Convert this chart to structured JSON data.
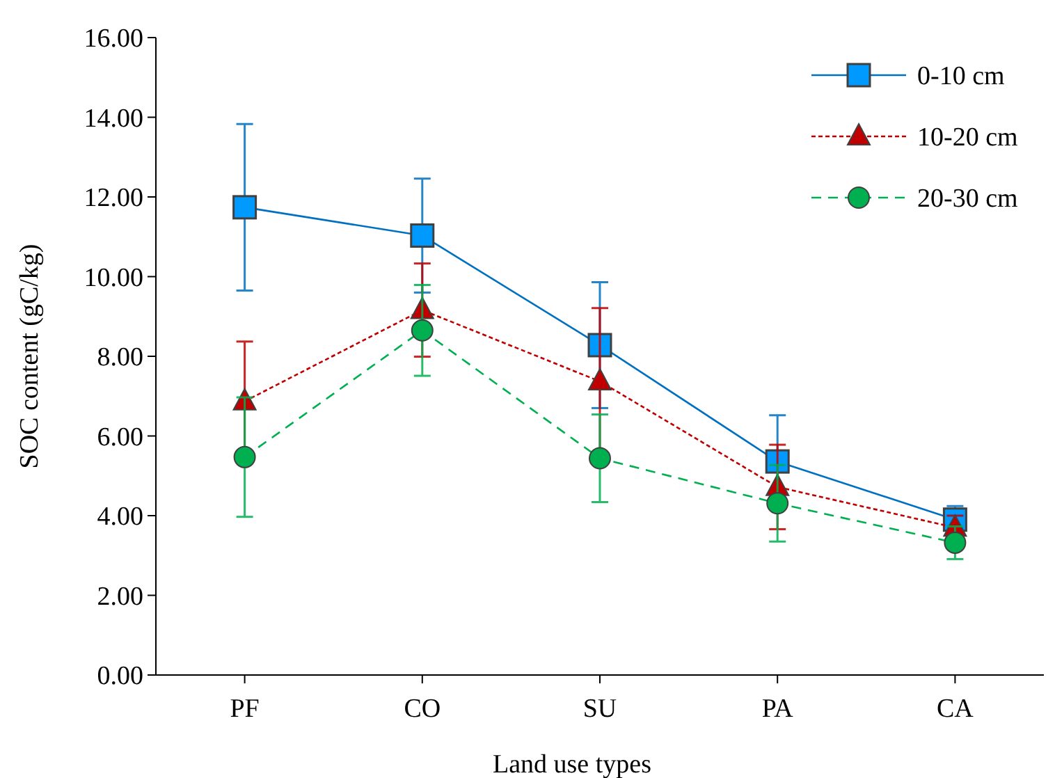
{
  "chart_data": {
    "type": "line",
    "xlabel": "Land use types",
    "ylabel": "SOC content (gC/kg)",
    "categories": [
      "PF",
      "CO",
      "SU",
      "PA",
      "CA"
    ],
    "ylim": [
      0,
      16
    ],
    "yticks": [
      {
        "value": 0,
        "label": "0.00"
      },
      {
        "value": 2,
        "label": "2.00"
      },
      {
        "value": 4,
        "label": "4.00"
      },
      {
        "value": 6,
        "label": "6.00"
      },
      {
        "value": 8,
        "label": "8.00"
      },
      {
        "value": 10,
        "label": "10.00"
      },
      {
        "value": 12,
        "label": "12.00"
      },
      {
        "value": 14,
        "label": "14.00"
      },
      {
        "value": 16,
        "label": "16.00"
      }
    ],
    "legend": "top right",
    "grid": false,
    "series": [
      {
        "name": "0-10 cm",
        "color": "#0070c0",
        "marker": "square",
        "line_style": "solid",
        "values": [
          11.74,
          11.03,
          8.28,
          5.36,
          3.9
        ],
        "errors": [
          2.09,
          1.43,
          1.58,
          1.16,
          0.34
        ]
      },
      {
        "name": "10-20 cm",
        "color": "#c00000",
        "marker": "triangle",
        "line_style": "dotted",
        "values": [
          6.87,
          9.16,
          7.37,
          4.72,
          3.7
        ],
        "errors": [
          1.5,
          1.17,
          1.84,
          1.06,
          0.3
        ]
      },
      {
        "name": "20-30 cm",
        "color": "#00b050",
        "marker": "circle",
        "line_style": "dashed",
        "values": [
          5.47,
          8.65,
          5.44,
          4.31,
          3.32
        ],
        "errors": [
          1.5,
          1.14,
          1.1,
          0.96,
          0.41
        ]
      }
    ]
  }
}
